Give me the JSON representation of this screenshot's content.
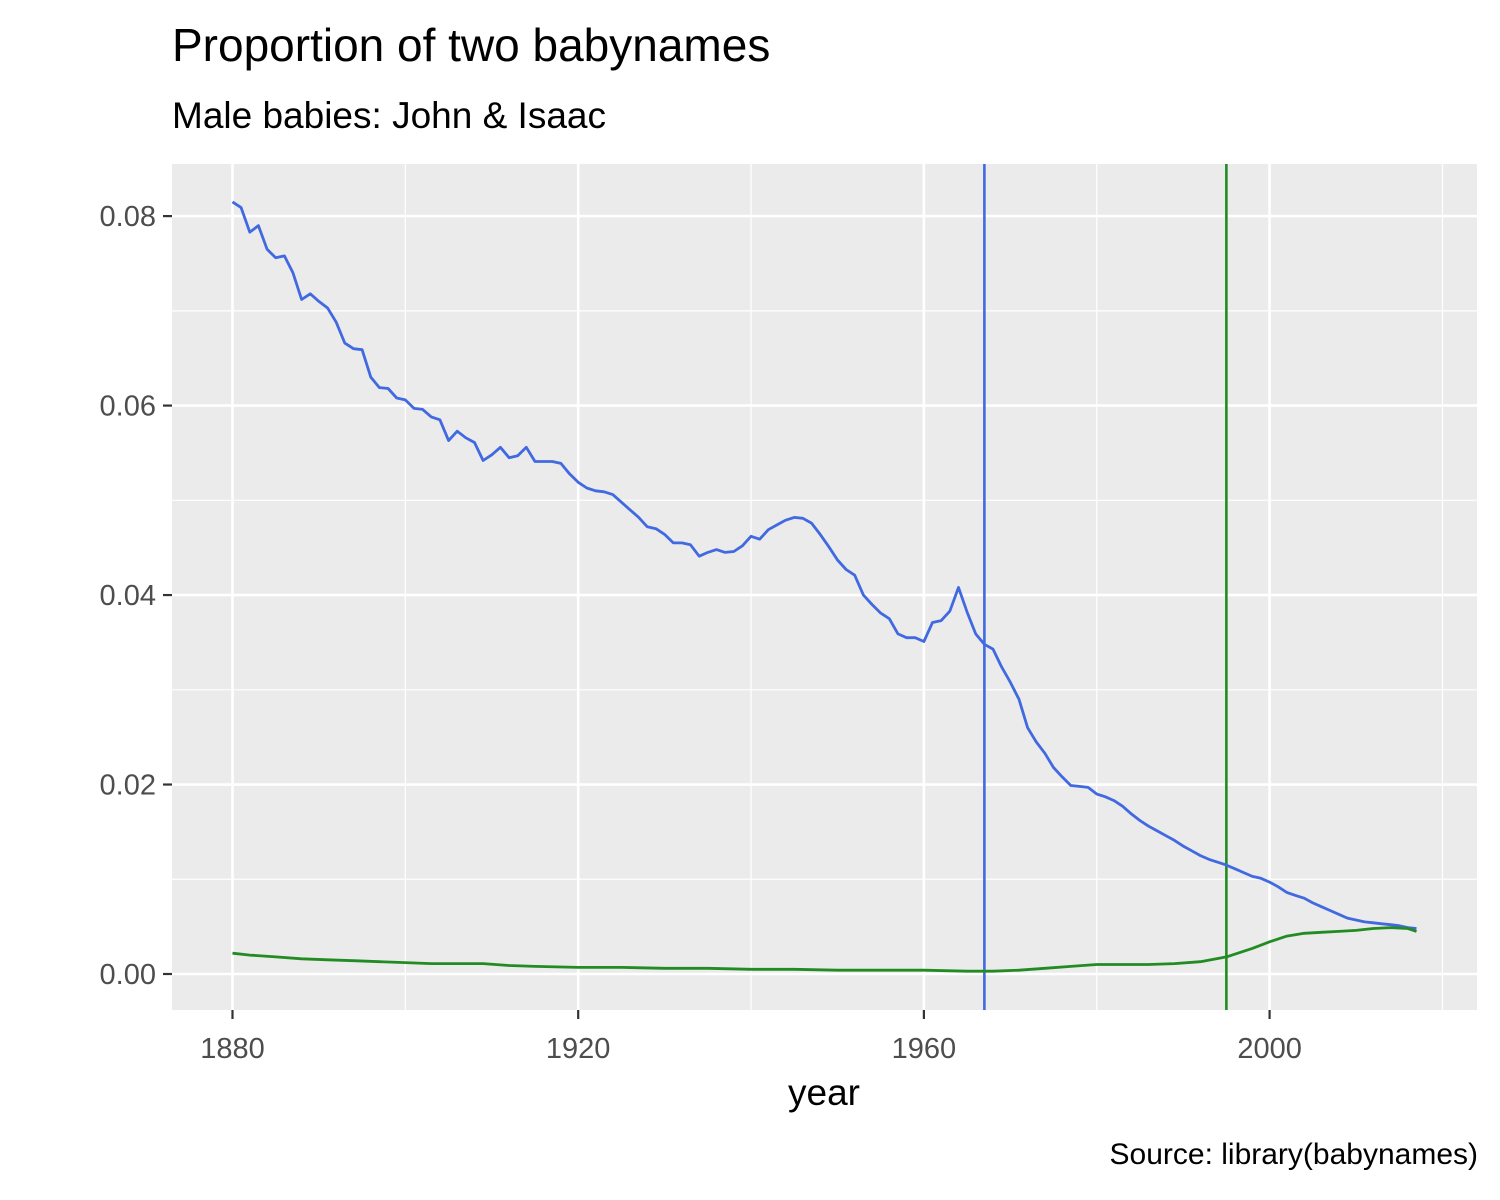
{
  "chart_data": {
    "type": "line",
    "title": "Proportion of two babynames",
    "subtitle": "Male babies:  John & Isaac",
    "caption": "Source:  library(babynames)",
    "xlabel": "year",
    "ylabel": "",
    "xlim": [
      1873,
      2024
    ],
    "ylim": [
      -0.0038,
      0.0855
    ],
    "x_ticks": [
      1880,
      1920,
      1960,
      2000
    ],
    "y_ticks": [
      0.0,
      0.02,
      0.04,
      0.06,
      0.08
    ],
    "x_tick_labels": [
      "1880",
      "1920",
      "1960",
      "2000"
    ],
    "y_tick_labels": [
      "0.00",
      "0.02",
      "0.04",
      "0.06",
      "0.08"
    ],
    "grid": true,
    "legend": "none",
    "background": "#EBEBEB",
    "series": [
      {
        "color": "#4169E1",
        "x": [
          1880,
          1881,
          1882,
          1883,
          1884,
          1885,
          1886,
          1887,
          1888,
          1889,
          1890,
          1891,
          1892,
          1893,
          1894,
          1895,
          1896,
          1897,
          1898,
          1899,
          1900,
          1901,
          1902,
          1903,
          1904,
          1905,
          1906,
          1907,
          1908,
          1909,
          1910,
          1911,
          1912,
          1913,
          1914,
          1915,
          1916,
          1917,
          1918,
          1919,
          1920,
          1921,
          1922,
          1923,
          1924,
          1925,
          1926,
          1927,
          1928,
          1929,
          1930,
          1931,
          1932,
          1933,
          1934,
          1935,
          1936,
          1937,
          1938,
          1939,
          1940,
          1941,
          1942,
          1943,
          1944,
          1945,
          1946,
          1947,
          1948,
          1949,
          1950,
          1951,
          1952,
          1953,
          1954,
          1955,
          1956,
          1957,
          1958,
          1959,
          1960,
          1961,
          1962,
          1963,
          1964,
          1965,
          1966,
          1967,
          1968,
          1969,
          1970,
          1971,
          1972,
          1973,
          1974,
          1975,
          1976,
          1977,
          1978,
          1979,
          1980,
          1981,
          1982,
          1983,
          1984,
          1985,
          1986,
          1987,
          1988,
          1989,
          1990,
          1991,
          1992,
          1993,
          1994,
          1995,
          1996,
          1997,
          1998,
          1999,
          2000,
          2001,
          2002,
          2003,
          2004,
          2005,
          2006,
          2007,
          2008,
          2009,
          2010,
          2011,
          2012,
          2013,
          2014,
          2015,
          2016,
          2017
        ],
        "values": [
          0.0815,
          0.0809,
          0.0783,
          0.079,
          0.0765,
          0.0756,
          0.0758,
          0.074,
          0.0712,
          0.0718,
          0.071,
          0.0703,
          0.0688,
          0.0666,
          0.066,
          0.0659,
          0.063,
          0.0619,
          0.0618,
          0.0608,
          0.0606,
          0.0597,
          0.0596,
          0.0588,
          0.0585,
          0.0563,
          0.0573,
          0.0566,
          0.0561,
          0.0542,
          0.0548,
          0.0556,
          0.0545,
          0.0547,
          0.0556,
          0.0541,
          0.0541,
          0.0541,
          0.0539,
          0.0528,
          0.0519,
          0.0513,
          0.051,
          0.0509,
          0.0506,
          0.0498,
          0.049,
          0.0482,
          0.0472,
          0.047,
          0.0464,
          0.0455,
          0.0455,
          0.0453,
          0.0441,
          0.0445,
          0.0448,
          0.0445,
          0.0446,
          0.0452,
          0.0462,
          0.0459,
          0.0469,
          0.0474,
          0.0479,
          0.0482,
          0.0481,
          0.0476,
          0.0464,
          0.0451,
          0.0437,
          0.0427,
          0.0421,
          0.04,
          0.039,
          0.0381,
          0.0375,
          0.0359,
          0.0355,
          0.0355,
          0.0351,
          0.0371,
          0.0373,
          0.0383,
          0.0408,
          0.0382,
          0.0359,
          0.0348,
          0.0343,
          0.0324,
          0.0308,
          0.029,
          0.026,
          0.0245,
          0.0233,
          0.0218,
          0.0208,
          0.0199,
          0.0198,
          0.0197,
          0.019,
          0.0187,
          0.0183,
          0.0177,
          0.0169,
          0.0162,
          0.0156,
          0.0151,
          0.0146,
          0.0141,
          0.0135,
          0.013,
          0.0125,
          0.0121,
          0.0118,
          0.0115,
          0.0111,
          0.0107,
          0.0103,
          0.0101,
          0.0097,
          0.0092,
          0.0086,
          0.0083,
          0.008,
          0.0075,
          0.0071,
          0.0067,
          0.0063,
          0.0059,
          0.0057,
          0.0055,
          0.0054,
          0.0053,
          0.0052,
          0.0051,
          0.0049,
          0.0048
        ]
      },
      {
        "color": "#228B22",
        "x": [
          1880,
          1882,
          1885,
          1888,
          1891,
          1894,
          1897,
          1900,
          1903,
          1906,
          1909,
          1912,
          1915,
          1920,
          1925,
          1930,
          1935,
          1940,
          1945,
          1950,
          1955,
          1960,
          1965,
          1968,
          1971,
          1974,
          1977,
          1980,
          1983,
          1986,
          1989,
          1992,
          1995,
          1998,
          2000,
          2002,
          2004,
          2006,
          2008,
          2010,
          2012,
          2014,
          2016,
          2017
        ],
        "values": [
          0.0022,
          0.002,
          0.0018,
          0.0016,
          0.0015,
          0.0014,
          0.0013,
          0.0012,
          0.0011,
          0.0011,
          0.0011,
          0.0009,
          0.0008,
          0.0007,
          0.0007,
          0.0006,
          0.0006,
          0.0005,
          0.0005,
          0.0004,
          0.0004,
          0.0004,
          0.0003,
          0.0003,
          0.0004,
          0.0006,
          0.0008,
          0.001,
          0.001,
          0.001,
          0.0011,
          0.0013,
          0.0018,
          0.0027,
          0.0034,
          0.004,
          0.0043,
          0.0044,
          0.0045,
          0.0046,
          0.0048,
          0.0049,
          0.0048,
          0.0045
        ]
      }
    ],
    "vlines": [
      {
        "x": 1967,
        "color": "#4169E1"
      },
      {
        "x": 1995,
        "color": "#228B22"
      }
    ]
  }
}
